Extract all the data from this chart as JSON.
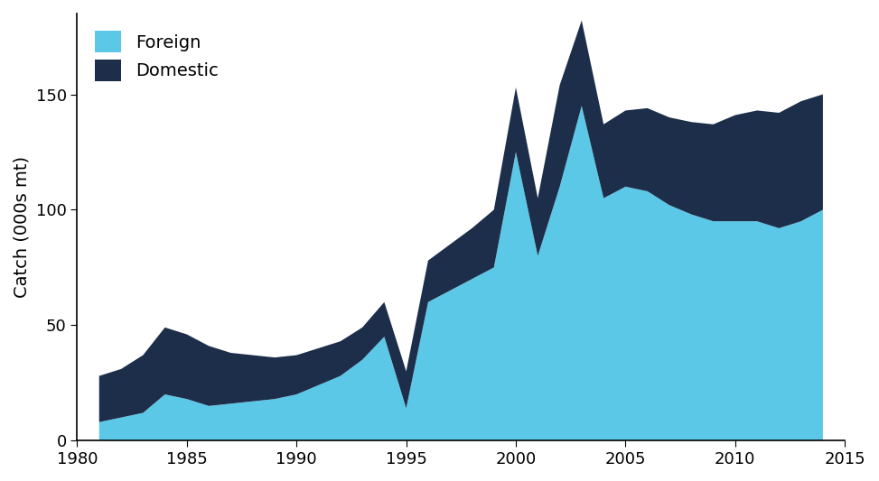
{
  "years": [
    1981,
    1982,
    1983,
    1984,
    1985,
    1986,
    1987,
    1988,
    1989,
    1990,
    1991,
    1992,
    1993,
    1994,
    1995,
    1996,
    1997,
    1998,
    1999,
    2000,
    2001,
    2002,
    2003,
    2004,
    2005,
    2006,
    2007,
    2008,
    2009,
    2010,
    2011,
    2012,
    2013,
    2014
  ],
  "foreign": [
    8,
    10,
    12,
    20,
    18,
    15,
    16,
    17,
    18,
    20,
    24,
    28,
    35,
    45,
    14,
    60,
    65,
    70,
    75,
    125,
    80,
    110,
    145,
    105,
    110,
    108,
    102,
    98,
    95,
    95,
    95,
    92,
    95,
    100
  ],
  "domestic": [
    20,
    21,
    25,
    29,
    28,
    26,
    22,
    20,
    18,
    17,
    16,
    15,
    14,
    15,
    16,
    18,
    20,
    22,
    25,
    28,
    25,
    44,
    37,
    32,
    33,
    36,
    38,
    40,
    42,
    46,
    48,
    50,
    52,
    50
  ],
  "foreign_color": "#5BC8E8",
  "domestic_color": "#1C2E4A",
  "background_color": "#FFFFFF",
  "ylabel": "Catch (000s mt)",
  "ylim": [
    0,
    185
  ],
  "yticks": [
    0,
    50,
    100,
    150
  ],
  "xticks": [
    1980,
    1985,
    1990,
    1995,
    2000,
    2005,
    2010,
    2015
  ],
  "xlabel_fontsize": 13,
  "ylabel_fontsize": 14,
  "tick_fontsize": 13,
  "legend_fontsize": 14
}
